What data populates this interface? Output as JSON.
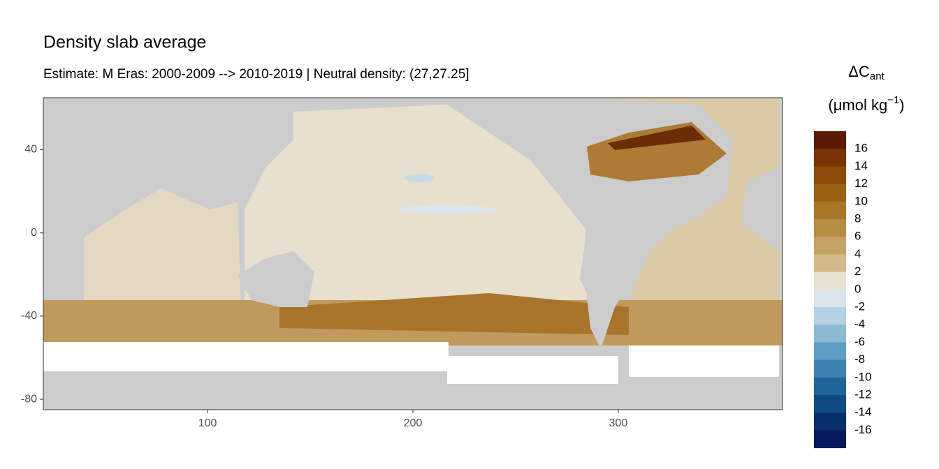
{
  "chart_data": {
    "type": "raster-map",
    "title": "Density slab average",
    "subtitle": "Estimate: M Eras: 2000-2009 --> 2010-2019 | Neutral density: (27,27.25]",
    "xlim": [
      20,
      380
    ],
    "xticks": [
      100,
      200,
      300
    ],
    "ylim": [
      -85,
      65
    ],
    "yticks": [
      40,
      0,
      -40,
      -80
    ],
    "grid": true,
    "legend": {
      "title": "ΔC",
      "title_subscript": "ant",
      "unit": "(μmol kg",
      "unit_superscript": "−1",
      "unit_close": ")",
      "breaks": [
        16,
        14,
        12,
        10,
        8,
        6,
        4,
        2,
        0,
        -2,
        -4,
        -6,
        -8,
        -10,
        -12,
        -14,
        -16
      ],
      "colors": [
        "#5c1a04",
        "#7b3205",
        "#8e4a08",
        "#9c6013",
        "#a97628",
        "#b78d45",
        "#c5a266",
        "#d4b98a",
        "#e9e1d2",
        "#dae6ec",
        "#b6d2e2",
        "#8dbad3",
        "#5f9ec4",
        "#3c82b2",
        "#1f649b",
        "#0f4a85",
        "#072f6e",
        "#041a5c"
      ]
    }
  }
}
